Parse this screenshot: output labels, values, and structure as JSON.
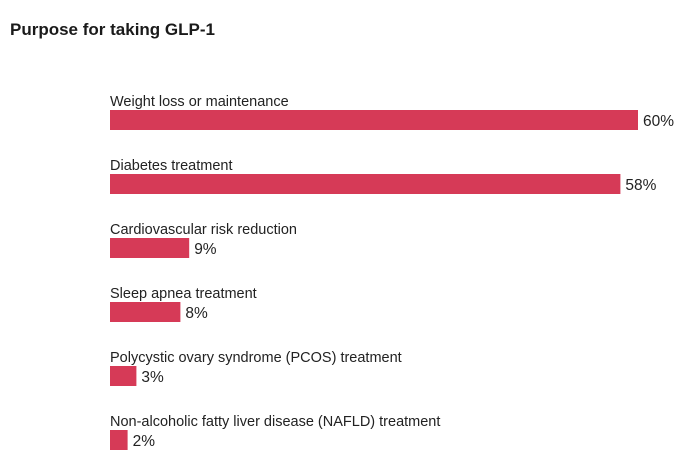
{
  "chart_data": {
    "type": "bar",
    "orientation": "horizontal",
    "title": "Purpose for taking GLP-1",
    "categories": [
      "Weight loss or maintenance",
      "Diabetes treatment",
      "Cardiovascular risk reduction",
      "Sleep apnea treatment",
      "Polycystic ovary syndrome (PCOS) treatment",
      "Non-alcoholic fatty liver disease (NAFLD) treatment"
    ],
    "values": [
      60,
      58,
      9,
      8,
      3,
      2
    ],
    "value_labels": [
      "60%",
      "58%",
      "9%",
      "8%",
      "3%",
      "2%"
    ],
    "unit": "%",
    "bar_color": "#d63a57",
    "xlim": [
      0,
      60
    ],
    "grid": false,
    "legend": "none"
  }
}
